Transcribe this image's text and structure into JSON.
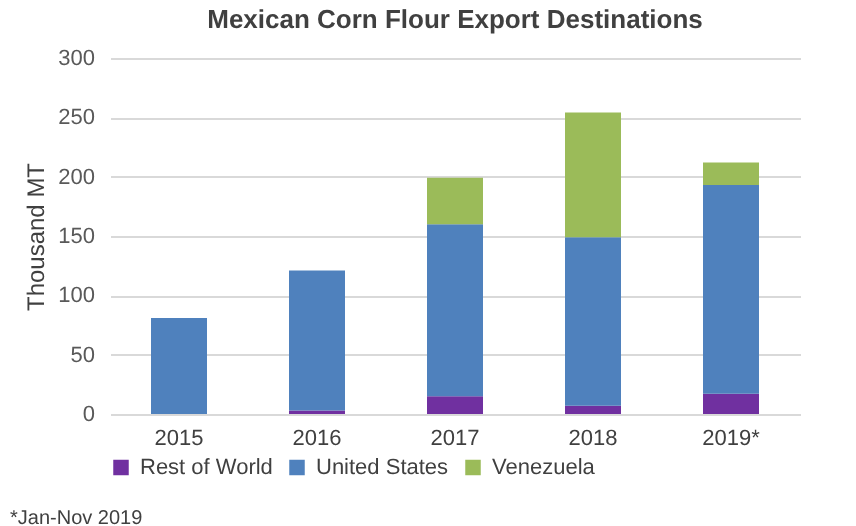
{
  "chart_data": {
    "type": "bar",
    "title": "Mexican Corn Flour Export Destinations",
    "ylabel": "Thousand MT",
    "categories": [
      "2015",
      "2016",
      "2017",
      "2018",
      "2019*"
    ],
    "stacked": true,
    "series": [
      {
        "name": "Rest of World",
        "color": "#7030a0",
        "values": [
          0,
          3,
          15,
          7,
          17
        ]
      },
      {
        "name": "United States",
        "color": "#4f81bd",
        "values": [
          81,
          118,
          145,
          142,
          176
        ]
      },
      {
        "name": "Venezuela",
        "color": "#9bbb59",
        "values": [
          0,
          0,
          39,
          105,
          19
        ]
      }
    ],
    "ylim": [
      0,
      300
    ],
    "yticks": [
      0,
      50,
      100,
      150,
      200,
      250,
      300
    ],
    "grid": "y",
    "legend": "bottom",
    "annotations": [
      "*Jan-Nov 2019"
    ]
  }
}
